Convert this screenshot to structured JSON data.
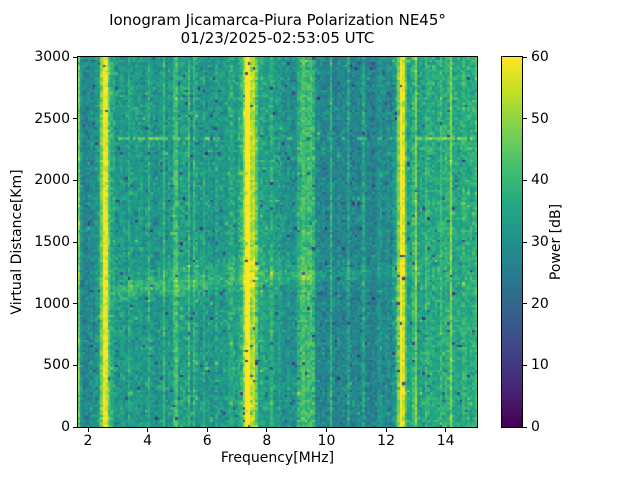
{
  "chart_data": {
    "type": "heatmap",
    "title": "Ionogram Jicamarca-Piura Polarization NE45°",
    "subtitle": "01/23/2025-02:53:05 UTC",
    "xlabel": "Frequency[MHz]",
    "ylabel": "Virtual Distance[Km]",
    "colorbar_label": "Power [dB]",
    "xlim": [
      1.664,
      15.05
    ],
    "ylim": [
      0,
      3000
    ],
    "clim": [
      0,
      60
    ],
    "xticks": [
      2,
      4,
      6,
      8,
      10,
      12,
      14
    ],
    "yticks": [
      0,
      500,
      1000,
      1500,
      2000,
      2500,
      3000
    ],
    "colorbar_ticks": [
      0,
      10,
      20,
      30,
      40,
      50,
      60
    ],
    "colormap": "viridis",
    "legend_position": "colorbar-right",
    "grid": false,
    "viridis_stops": [
      [
        0.0,
        "#440154"
      ],
      [
        0.1,
        "#482475"
      ],
      [
        0.2,
        "#414487"
      ],
      [
        0.3,
        "#355f8d"
      ],
      [
        0.4,
        "#2a788e"
      ],
      [
        0.5,
        "#21918c"
      ],
      [
        0.6,
        "#22a884"
      ],
      [
        0.7,
        "#44bf70"
      ],
      [
        0.8,
        "#7ad151"
      ],
      [
        0.9,
        "#bddf26"
      ],
      [
        1.0,
        "#fde725"
      ]
    ],
    "background_bands": [
      [
        1.664,
        2.42,
        27
      ],
      [
        2.42,
        2.75,
        30.5
      ],
      [
        2.75,
        3.1,
        30
      ],
      [
        3.1,
        4.7,
        31.5
      ],
      [
        4.7,
        5.65,
        33
      ],
      [
        5.65,
        7.2,
        31.5
      ],
      [
        7.2,
        8.6,
        32.5
      ],
      [
        8.6,
        9.05,
        29
      ],
      [
        9.05,
        9.65,
        36
      ],
      [
        9.65,
        10.35,
        26.5
      ],
      [
        10.35,
        12.35,
        27
      ],
      [
        12.35,
        13.1,
        30.5
      ],
      [
        13.1,
        15.05,
        35.5
      ]
    ],
    "rfi_stripes": [
      [
        1.71,
        0.03,
        20
      ],
      [
        2.57,
        0.09,
        26
      ],
      [
        2.57,
        0.28,
        6
      ],
      [
        3.38,
        0.025,
        5
      ],
      [
        4.03,
        0.025,
        8
      ],
      [
        4.55,
        0.025,
        6
      ],
      [
        4.93,
        0.03,
        15
      ],
      [
        5.17,
        0.025,
        10
      ],
      [
        5.38,
        0.03,
        9
      ],
      [
        5.58,
        0.025,
        8
      ],
      [
        5.92,
        0.025,
        4
      ],
      [
        6.35,
        0.025,
        8
      ],
      [
        6.78,
        0.025,
        9
      ],
      [
        7.36,
        0.09,
        27
      ],
      [
        7.58,
        0.05,
        14
      ],
      [
        7.36,
        0.3,
        7
      ],
      [
        7.85,
        0.025,
        5
      ],
      [
        8.13,
        0.025,
        8
      ],
      [
        8.77,
        0.025,
        9
      ],
      [
        9.35,
        0.22,
        5
      ],
      [
        10.15,
        0.035,
        13
      ],
      [
        10.72,
        0.025,
        7
      ],
      [
        11.25,
        0.025,
        5
      ],
      [
        11.8,
        0.03,
        7
      ],
      [
        12.52,
        0.09,
        27
      ],
      [
        12.52,
        0.25,
        6
      ],
      [
        12.97,
        0.035,
        22
      ],
      [
        13.38,
        0.03,
        9
      ],
      [
        13.82,
        0.025,
        7
      ],
      [
        14.17,
        0.035,
        11
      ],
      [
        14.62,
        0.03,
        8
      ],
      [
        14.97,
        0.03,
        10
      ]
    ],
    "echo_trace": {
      "f_start": 2.85,
      "f_end": 13.2,
      "h0": 1120,
      "slope": 17,
      "sigma": 48,
      "amp_segments": [
        [
          2.85,
          3.0,
          4
        ],
        [
          3.0,
          6.3,
          8
        ],
        [
          6.3,
          9.5,
          6.5
        ],
        [
          9.5,
          11.0,
          4.5
        ],
        [
          11.0,
          13.2,
          3
        ]
      ],
      "second_f": [
        4.3,
        9.3
      ],
      "second_offset": 115,
      "second_sigma": 42,
      "second_amp": 3.5
    },
    "dashed_lines": [
      {
        "km": 2350,
        "f_range": [
          2.9,
          6.3
        ],
        "duty": 0.6,
        "power_min": 43,
        "power_max": 50
      },
      {
        "km": 2350,
        "f_range": [
          6.3,
          12.85
        ],
        "duty": 0.38,
        "power_min": 37,
        "power_max": 44
      },
      {
        "km": 2350,
        "f_range": [
          12.85,
          15.05
        ],
        "duty": 0.65,
        "power_min": 44,
        "power_max": 52
      },
      {
        "km": 2268,
        "f_range": [
          12.9,
          15.05
        ],
        "duty": 0.5,
        "power_min": 38,
        "power_max": 45
      }
    ],
    "noise": {
      "column_jitter": 1.3,
      "cell_sigma": 3.3,
      "dark_speckle_prob": 0.013,
      "dark_speckle_power": 8,
      "bright_speckle_prob": 0.004
    }
  }
}
